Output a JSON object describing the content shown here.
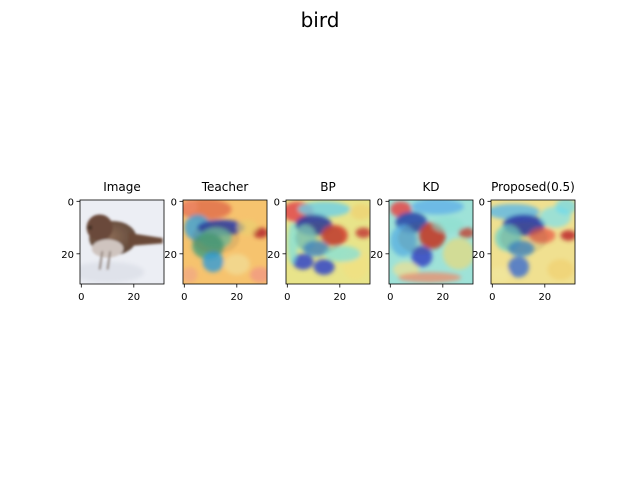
{
  "suptitle": "bird",
  "chart_data": [
    {
      "type": "heatmap",
      "title": "Image",
      "content": "bird photo",
      "xlim": [
        0,
        31
      ],
      "ylim": [
        31,
        0
      ],
      "xticks": [
        0,
        20
      ],
      "yticks": [
        0,
        20
      ]
    },
    {
      "type": "heatmap",
      "title": "Teacher",
      "content": "attention heatmap overlay",
      "colormap": "jet",
      "xlim": [
        0,
        31
      ],
      "ylim": [
        31,
        0
      ],
      "xticks": [
        0,
        20
      ],
      "yticks": [
        0,
        20
      ]
    },
    {
      "type": "heatmap",
      "title": "BP",
      "content": "attention heatmap overlay",
      "colormap": "jet",
      "xlim": [
        0,
        31
      ],
      "ylim": [
        31,
        0
      ],
      "xticks": [
        0,
        20
      ],
      "yticks": [
        0,
        20
      ]
    },
    {
      "type": "heatmap",
      "title": "KD",
      "content": "attention heatmap overlay",
      "colormap": "jet",
      "xlim": [
        0,
        31
      ],
      "ylim": [
        31,
        0
      ],
      "xticks": [
        0,
        20
      ],
      "yticks": [
        0,
        20
      ]
    },
    {
      "type": "heatmap",
      "title": "Proposed(0.5)",
      "content": "attention heatmap overlay",
      "colormap": "jet",
      "xlim": [
        0,
        31
      ],
      "ylim": [
        31,
        0
      ],
      "xticks": [
        0,
        20
      ],
      "yticks": [
        0,
        20
      ]
    }
  ]
}
